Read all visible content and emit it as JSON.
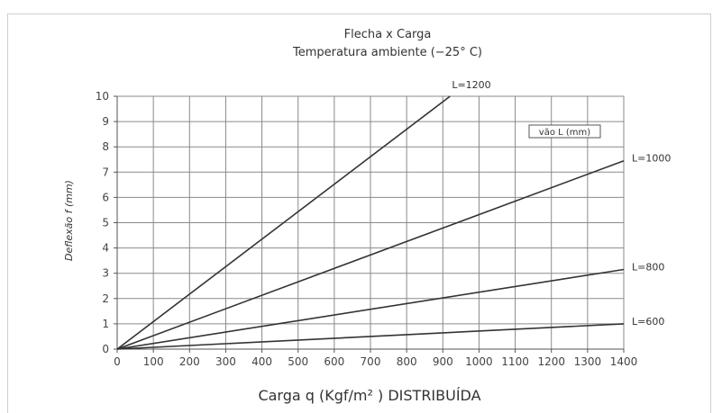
{
  "chart_data": {
    "type": "line",
    "title": "Flecha x Carga",
    "subtitle": "Temperatura ambiente (−25° C)",
    "xlabel": "Carga q (Kgf/m² ) DISTRIBUÍDA",
    "ylabel": "Deflexão f (mm)",
    "xlim": [
      0,
      1400
    ],
    "ylim": [
      0,
      10
    ],
    "xticks": [
      0,
      100,
      200,
      300,
      400,
      500,
      600,
      700,
      800,
      900,
      1000,
      1100,
      1200,
      1300,
      1400
    ],
    "yticks": [
      0,
      1,
      2,
      3,
      4,
      5,
      6,
      7,
      8,
      9,
      10
    ],
    "grid": true,
    "legend_note": "vão L (mm)",
    "series": [
      {
        "name": "L=1200",
        "x": [
          0,
          920
        ],
        "values": [
          0,
          10
        ]
      },
      {
        "name": "L=1000",
        "x": [
          0,
          1400
        ],
        "values": [
          0,
          7.45
        ]
      },
      {
        "name": "L=800",
        "x": [
          0,
          1400
        ],
        "values": [
          0,
          3.15
        ]
      },
      {
        "name": "L=600",
        "x": [
          0,
          1400
        ],
        "values": [
          0,
          1.0
        ]
      }
    ]
  }
}
